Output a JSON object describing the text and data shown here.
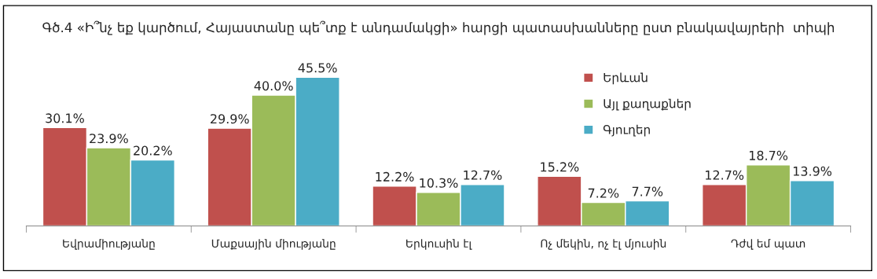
{
  "chart_data": {
    "type": "bar",
    "title": "Գծ.4 «Ի՞նչ եք կարծում, Հայաստանը պե՞տք է անդամակցի» հարցի պատասխանները ըստ բնակավայրերի  տիպի",
    "categories": [
      "Եվրամիությանը",
      "Մաքսային միությանը",
      "Երկուսին էլ",
      "Ոչ մեկին, ոչ էլ մյուսին",
      "Դժվ եմ պատ"
    ],
    "series": [
      {
        "name": "Երևան",
        "color": "#c0504d",
        "values": [
          30.1,
          29.9,
          12.2,
          15.2,
          12.7
        ],
        "value_labels": [
          "30.1%",
          "29.9%",
          "12.2%",
          "15.2%",
          "12.7%"
        ]
      },
      {
        "name": "Այլ քաղաքներ",
        "color": "#9bbb59",
        "values": [
          23.9,
          40.0,
          10.3,
          7.2,
          18.7
        ],
        "value_labels": [
          "23.9%",
          "40.0%",
          "10.3%",
          "7.2%",
          "18.7%"
        ]
      },
      {
        "name": "Գյուղեր",
        "color": "#4bacc6",
        "values": [
          20.2,
          45.5,
          12.7,
          7.7,
          13.9
        ],
        "value_labels": [
          "20.2%",
          "45.5%",
          "12.7%",
          "7.7%",
          "13.9%"
        ]
      }
    ],
    "legend": "top right",
    "grid": false
  }
}
